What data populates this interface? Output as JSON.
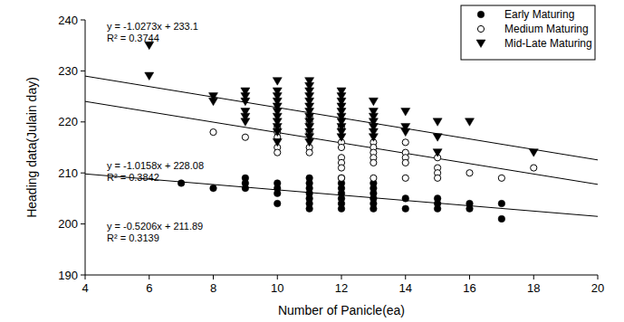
{
  "chart_data": {
    "type": "scatter",
    "x_label": "Number of Panicle(ea)",
    "y_label": "Heading data(Julain day)",
    "xlim": [
      4,
      20
    ],
    "xticks": [
      4,
      6,
      8,
      10,
      12,
      14,
      16,
      18,
      20
    ],
    "ylim": [
      190,
      240
    ],
    "yticks": [
      190,
      200,
      210,
      220,
      230,
      240
    ],
    "grid": false,
    "legend": "top-right",
    "series": [
      {
        "name": "Early Maturing",
        "color": "#000000",
        "marker": "circle",
        "x": [
          7,
          8,
          9,
          9,
          9,
          10,
          10,
          10,
          10,
          11,
          11,
          11,
          11,
          11,
          11,
          11,
          12,
          12,
          12,
          12,
          12,
          12,
          12,
          13,
          13,
          13,
          13,
          13,
          13,
          14,
          14,
          15,
          15,
          15,
          16,
          16,
          17,
          17
        ],
        "values": [
          208,
          207,
          209,
          208,
          207,
          208,
          207,
          206,
          204,
          209,
          208,
          207,
          206,
          205,
          204,
          203,
          209,
          208,
          207,
          206,
          205,
          204,
          203,
          208,
          207,
          206,
          205,
          204,
          203,
          205,
          203,
          205,
          204,
          203,
          204,
          203,
          204,
          201
        ],
        "trend": {
          "x": [
            4,
            20
          ],
          "values": [
            209.81,
            201.48
          ],
          "equation": "y = -0.5206x + 211.89",
          "r2": "R² = 0.3139",
          "line_style": "solid"
        }
      },
      {
        "name": "Medium Maturing",
        "color": "#000000",
        "marker": "open_circle",
        "x": [
          8,
          9,
          10,
          10,
          10,
          10,
          10,
          11,
          11,
          11,
          11,
          11,
          12,
          12,
          12,
          12,
          12,
          12,
          12,
          13,
          13,
          13,
          13,
          13,
          13,
          14,
          14,
          14,
          14,
          14,
          15,
          15,
          15,
          15,
          16,
          17,
          18
        ],
        "values": [
          218,
          217,
          219,
          218,
          217,
          215,
          214,
          221,
          220,
          218,
          215,
          214,
          219,
          216,
          215,
          213,
          212,
          211,
          209,
          216,
          215,
          214,
          213,
          212,
          209,
          216,
          214,
          213,
          212,
          209,
          213,
          211,
          210,
          209,
          210,
          209,
          211
        ],
        "trend": {
          "x": [
            4,
            20
          ],
          "values": [
            224.02,
            207.76
          ],
          "equation": "y = -1.0158x + 228.08",
          "r2": "R² = 0.3842",
          "line_style": "solid"
        }
      },
      {
        "name": "Mid-Late Maturing",
        "color": "#000000",
        "marker": "triangle_down",
        "x": [
          6,
          6,
          8,
          8,
          9,
          9,
          9,
          9,
          9,
          9,
          10,
          10,
          10,
          10,
          10,
          10,
          10,
          10,
          10,
          10,
          10,
          11,
          11,
          11,
          11,
          11,
          11,
          11,
          11,
          11,
          11,
          11,
          11,
          11,
          12,
          12,
          12,
          12,
          12,
          12,
          12,
          12,
          12,
          12,
          13,
          13,
          13,
          13,
          13,
          13,
          13,
          14,
          14,
          14,
          15,
          15,
          15,
          16,
          18
        ],
        "values": [
          235,
          229,
          225,
          224,
          226,
          225,
          224,
          222,
          221,
          220,
          228,
          226,
          225,
          224,
          223,
          222,
          221,
          220,
          219,
          218,
          216,
          228,
          227,
          226,
          225,
          224,
          223,
          222,
          221,
          220,
          219,
          218,
          217,
          216,
          226,
          225,
          224,
          223,
          222,
          221,
          220,
          219,
          218,
          217,
          224,
          222,
          221,
          220,
          219,
          218,
          217,
          222,
          219,
          218,
          220,
          217,
          214,
          220,
          214
        ],
        "trend": {
          "x": [
            4,
            20
          ],
          "values": [
            228.99,
            212.55
          ],
          "equation": "y = -1.0273x + 233.1",
          "r2": "R² = 0.3744",
          "line_style": "solid"
        }
      }
    ]
  }
}
